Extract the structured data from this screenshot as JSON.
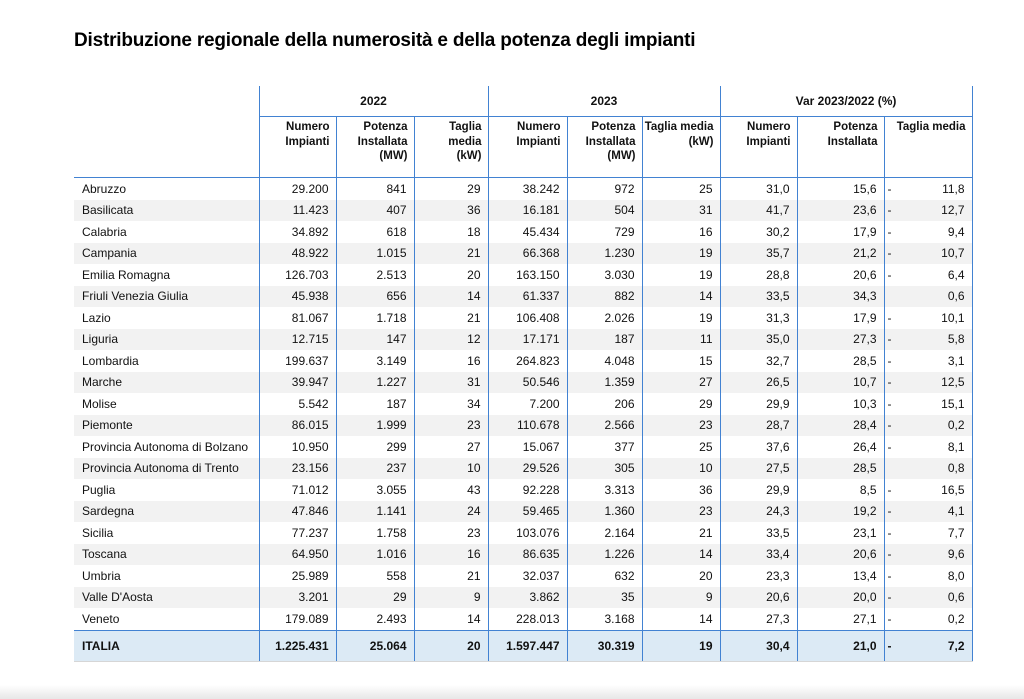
{
  "title": "Distribuzione regionale della numerosità e della potenza degli impianti",
  "colors": {
    "border_blue": "#4282d2",
    "total_row_bg": "#dceaf5",
    "alt_row_bg": "#f2f2f2"
  },
  "table": {
    "groups": [
      {
        "label": "2022",
        "columns": [
          "Numero\nImpianti",
          "Potenza\nInstallata\n(MW)",
          "Taglia media\n(kW)"
        ]
      },
      {
        "label": "2023",
        "columns": [
          "Numero\nImpianti",
          "Potenza\nInstallata\n(MW)",
          "Taglia media\n(kW)"
        ]
      },
      {
        "label": "Var 2023/2022 (%)",
        "columns": [
          "Numero\nImpianti",
          "Potenza\nInstallata",
          "Taglia media"
        ]
      }
    ],
    "rows": [
      {
        "region": "Abruzzo",
        "values": [
          "29.200",
          "841",
          "29",
          "38.242",
          "972",
          "25",
          "31,0",
          "15,6"
        ],
        "var_taglia_sign": "-",
        "var_taglia": "11,8"
      },
      {
        "region": "Basilicata",
        "values": [
          "11.423",
          "407",
          "36",
          "16.181",
          "504",
          "31",
          "41,7",
          "23,6"
        ],
        "var_taglia_sign": "-",
        "var_taglia": "12,7"
      },
      {
        "region": "Calabria",
        "values": [
          "34.892",
          "618",
          "18",
          "45.434",
          "729",
          "16",
          "30,2",
          "17,9"
        ],
        "var_taglia_sign": "-",
        "var_taglia": "9,4"
      },
      {
        "region": "Campania",
        "values": [
          "48.922",
          "1.015",
          "21",
          "66.368",
          "1.230",
          "19",
          "35,7",
          "21,2"
        ],
        "var_taglia_sign": "-",
        "var_taglia": "10,7"
      },
      {
        "region": "Emilia Romagna",
        "values": [
          "126.703",
          "2.513",
          "20",
          "163.150",
          "3.030",
          "19",
          "28,8",
          "20,6"
        ],
        "var_taglia_sign": "-",
        "var_taglia": "6,4"
      },
      {
        "region": "Friuli Venezia Giulia",
        "values": [
          "45.938",
          "656",
          "14",
          "61.337",
          "882",
          "14",
          "33,5",
          "34,3"
        ],
        "var_taglia_sign": "",
        "var_taglia": "0,6"
      },
      {
        "region": "Lazio",
        "values": [
          "81.067",
          "1.718",
          "21",
          "106.408",
          "2.026",
          "19",
          "31,3",
          "17,9"
        ],
        "var_taglia_sign": "-",
        "var_taglia": "10,1"
      },
      {
        "region": "Liguria",
        "values": [
          "12.715",
          "147",
          "12",
          "17.171",
          "187",
          "11",
          "35,0",
          "27,3"
        ],
        "var_taglia_sign": "-",
        "var_taglia": "5,8"
      },
      {
        "region": "Lombardia",
        "values": [
          "199.637",
          "3.149",
          "16",
          "264.823",
          "4.048",
          "15",
          "32,7",
          "28,5"
        ],
        "var_taglia_sign": "-",
        "var_taglia": "3,1"
      },
      {
        "region": "Marche",
        "values": [
          "39.947",
          "1.227",
          "31",
          "50.546",
          "1.359",
          "27",
          "26,5",
          "10,7"
        ],
        "var_taglia_sign": "-",
        "var_taglia": "12,5"
      },
      {
        "region": "Molise",
        "values": [
          "5.542",
          "187",
          "34",
          "7.200",
          "206",
          "29",
          "29,9",
          "10,3"
        ],
        "var_taglia_sign": "-",
        "var_taglia": "15,1"
      },
      {
        "region": "Piemonte",
        "values": [
          "86.015",
          "1.999",
          "23",
          "110.678",
          "2.566",
          "23",
          "28,7",
          "28,4"
        ],
        "var_taglia_sign": "-",
        "var_taglia": "0,2"
      },
      {
        "region": "Provincia Autonoma di Bolzano",
        "values": [
          "10.950",
          "299",
          "27",
          "15.067",
          "377",
          "25",
          "37,6",
          "26,4"
        ],
        "var_taglia_sign": "-",
        "var_taglia": "8,1"
      },
      {
        "region": "Provincia Autonoma di Trento",
        "values": [
          "23.156",
          "237",
          "10",
          "29.526",
          "305",
          "10",
          "27,5",
          "28,5"
        ],
        "var_taglia_sign": "",
        "var_taglia": "0,8"
      },
      {
        "region": "Puglia",
        "values": [
          "71.012",
          "3.055",
          "43",
          "92.228",
          "3.313",
          "36",
          "29,9",
          "8,5"
        ],
        "var_taglia_sign": "-",
        "var_taglia": "16,5"
      },
      {
        "region": "Sardegna",
        "values": [
          "47.846",
          "1.141",
          "24",
          "59.465",
          "1.360",
          "23",
          "24,3",
          "19,2"
        ],
        "var_taglia_sign": "-",
        "var_taglia": "4,1"
      },
      {
        "region": "Sicilia",
        "values": [
          "77.237",
          "1.758",
          "23",
          "103.076",
          "2.164",
          "21",
          "33,5",
          "23,1"
        ],
        "var_taglia_sign": "-",
        "var_taglia": "7,7"
      },
      {
        "region": "Toscana",
        "values": [
          "64.950",
          "1.016",
          "16",
          "86.635",
          "1.226",
          "14",
          "33,4",
          "20,6"
        ],
        "var_taglia_sign": "-",
        "var_taglia": "9,6"
      },
      {
        "region": "Umbria",
        "values": [
          "25.989",
          "558",
          "21",
          "32.037",
          "632",
          "20",
          "23,3",
          "13,4"
        ],
        "var_taglia_sign": "-",
        "var_taglia": "8,0"
      },
      {
        "region": "Valle D'Aosta",
        "values": [
          "3.201",
          "29",
          "9",
          "3.862",
          "35",
          "9",
          "20,6",
          "20,0"
        ],
        "var_taglia_sign": "-",
        "var_taglia": "0,6"
      },
      {
        "region": "Veneto",
        "values": [
          "179.089",
          "2.493",
          "14",
          "228.013",
          "3.168",
          "14",
          "27,3",
          "27,1"
        ],
        "var_taglia_sign": "-",
        "var_taglia": "0,2"
      }
    ],
    "total": {
      "region": "ITALIA",
      "values": [
        "1.225.431",
        "25.064",
        "20",
        "1.597.447",
        "30.319",
        "19",
        "30,4",
        "21,0"
      ],
      "var_taglia_sign": "-",
      "var_taglia": "7,2"
    }
  }
}
